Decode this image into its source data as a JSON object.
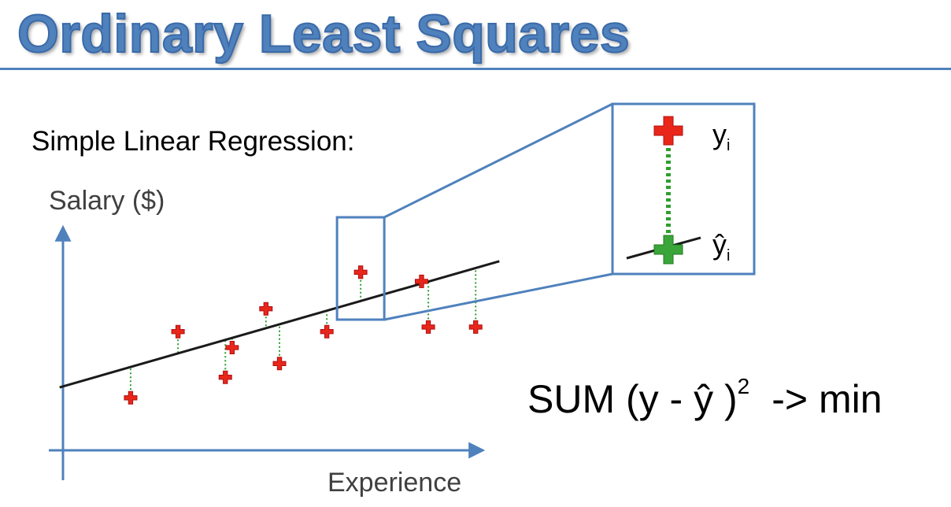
{
  "title": "Ordinary Least Squares",
  "subtitle": "Simple Linear Regression:",
  "axes": {
    "ylabel": "Salary ($)",
    "xlabel": "Experience"
  },
  "zoom": {
    "actual_label": "y",
    "predicted_label": "ŷ",
    "subscript": "i"
  },
  "formula": {
    "prefix": "SUM (y - ŷ )",
    "exponent": "2",
    "suffix": "-> min"
  },
  "colors": {
    "title": "#4f81bd",
    "axis": "#4f81bd",
    "regression_line": "#1a1a1a",
    "data_point": "#e8261a",
    "residual": "#2e9e2e",
    "predicted_point": "#3aa63a",
    "zoom_frame": "#4f81bd"
  },
  "chart_data": {
    "type": "scatter",
    "points": [
      {
        "x": 1.0,
        "y": 2.3
      },
      {
        "x": 1.7,
        "y": 5.2
      },
      {
        "x": 2.4,
        "y": 3.2
      },
      {
        "x": 2.5,
        "y": 4.5
      },
      {
        "x": 3.0,
        "y": 6.2
      },
      {
        "x": 3.2,
        "y": 3.8
      },
      {
        "x": 3.9,
        "y": 5.2
      },
      {
        "x": 4.4,
        "y": 7.8
      },
      {
        "x": 5.3,
        "y": 7.4
      },
      {
        "x": 5.4,
        "y": 5.4
      },
      {
        "x": 6.1,
        "y": 5.4
      }
    ],
    "regression_line": {
      "intercept": 2.8,
      "slope": 0.85
    },
    "residuals": "dotted",
    "highlighted_point_index": 7,
    "xlim": [
      0,
      6.4
    ],
    "ylim": [
      0,
      10
    ]
  }
}
